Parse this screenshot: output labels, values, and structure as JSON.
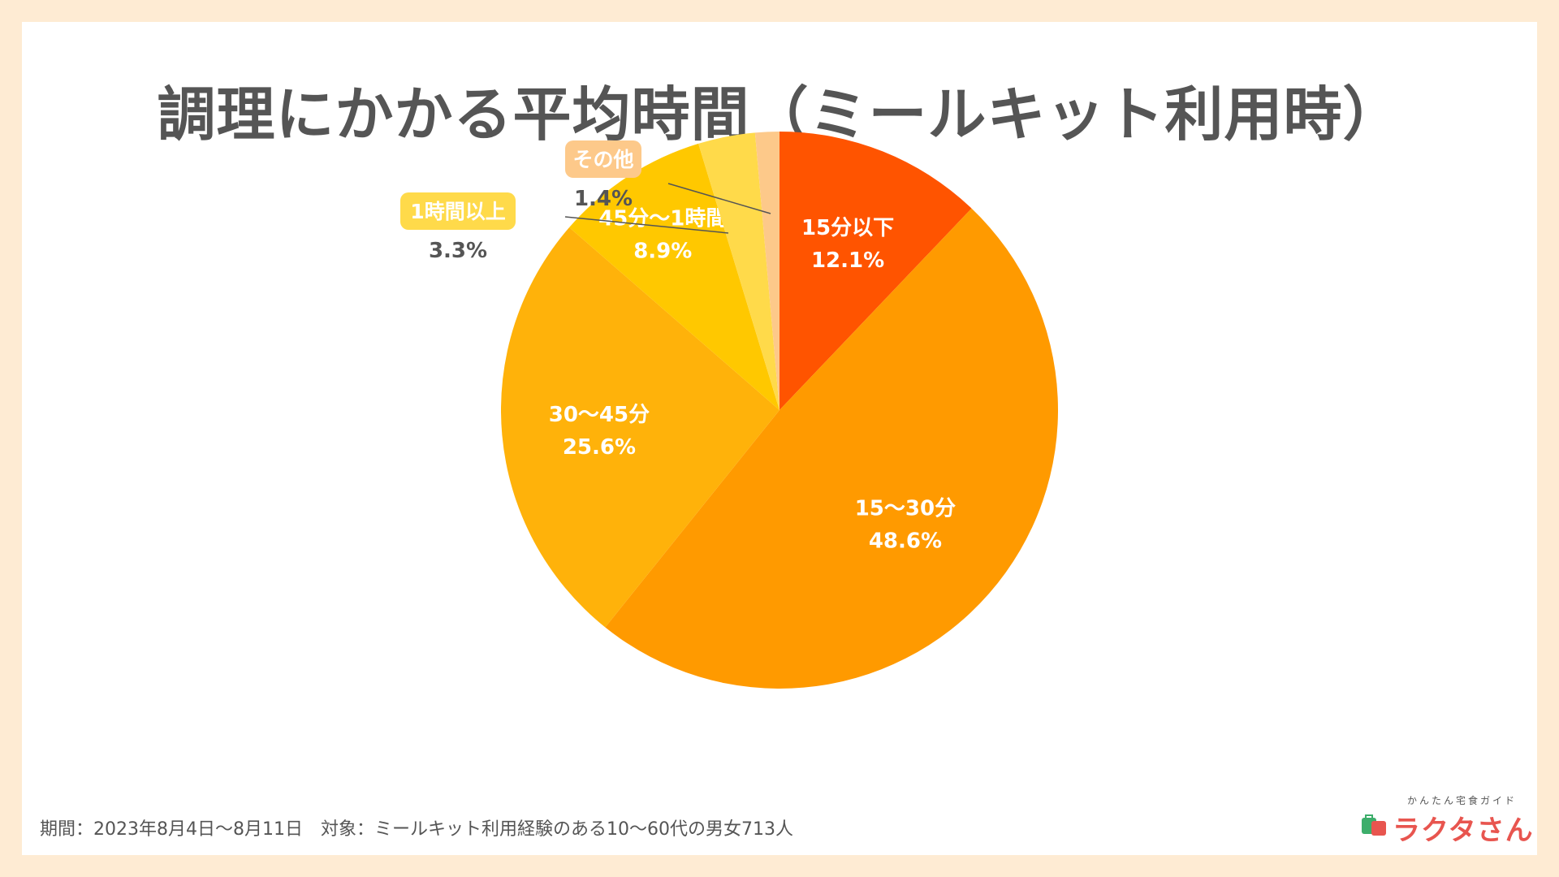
{
  "chart_data": {
    "type": "pie",
    "title": "調理にかかる平均時間（ミールキット利用時）",
    "categories": [
      "15分以下",
      "15〜30分",
      "30〜45分",
      "45分〜1時間",
      "1時間以上",
      "その他"
    ],
    "values": [
      12.1,
      48.6,
      25.6,
      8.9,
      3.3,
      1.4
    ],
    "value_labels": [
      "12.1%",
      "48.6%",
      "25.6%",
      "8.9%",
      "3.3%",
      "1.4%"
    ],
    "colors": [
      "#FF5400",
      "#FF9A00",
      "#FFB20A",
      "#FFC800",
      "#FFDA4A",
      "#FDC98A"
    ]
  },
  "footer": {
    "text": "期間：2023年8月4日〜8月11日　対象：ミールキット利用経験のある10〜60代の男女713人"
  },
  "logo": {
    "tagline": "かんたん宅食ガイド",
    "name": "ラクタさん"
  }
}
